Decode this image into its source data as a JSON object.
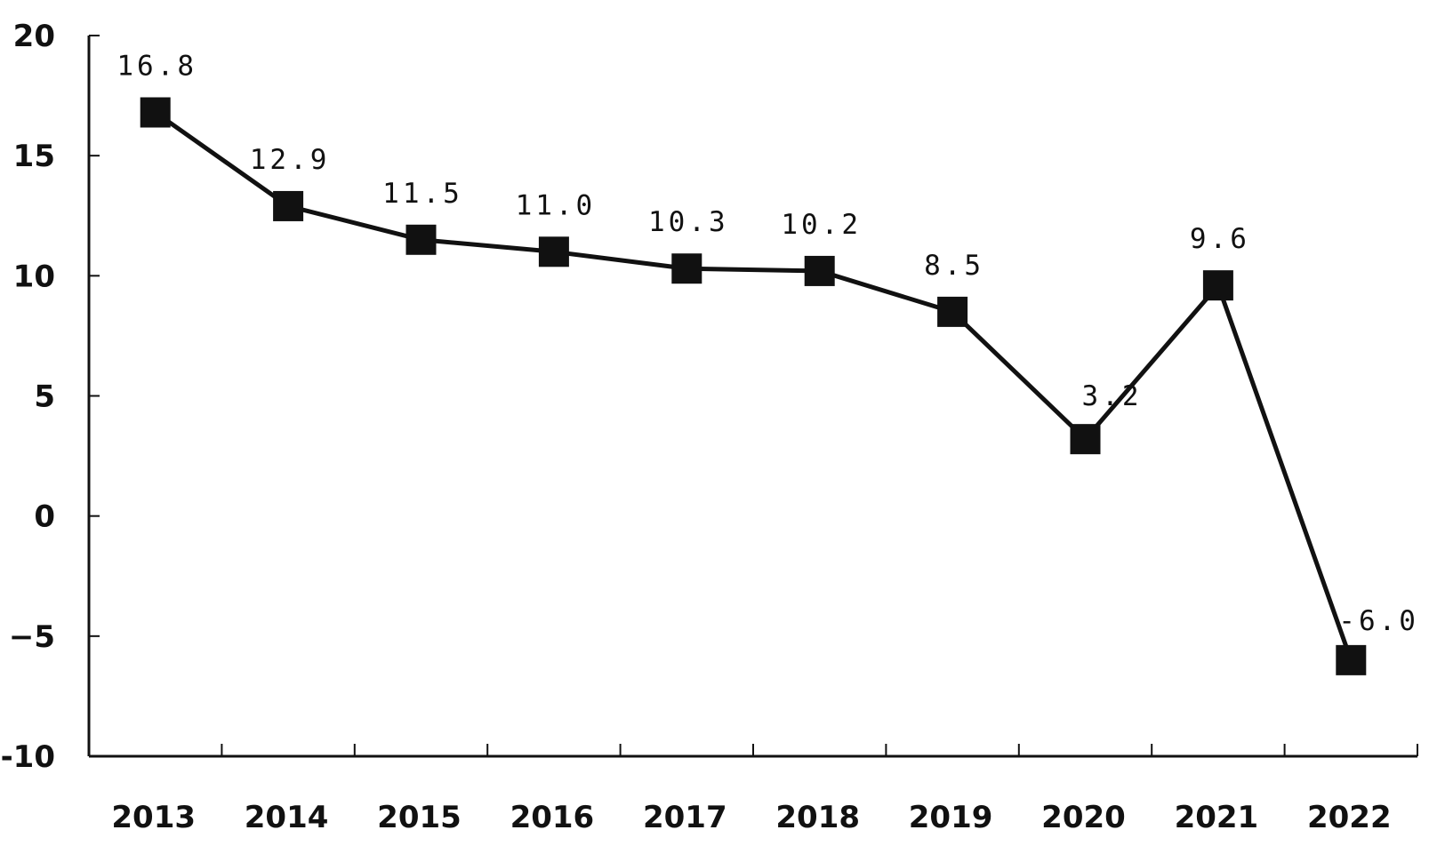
{
  "chart_data": {
    "type": "line",
    "title": "",
    "xlabel": "",
    "ylabel": "",
    "categories": [
      "2013",
      "2014",
      "2015",
      "2016",
      "2017",
      "2018",
      "2019",
      "2020",
      "2021",
      "2022"
    ],
    "series": [
      {
        "values": [
          16.8,
          12.9,
          11.5,
          11.0,
          10.3,
          10.2,
          8.5,
          3.2,
          9.6,
          -6.0
        ],
        "data_labels": [
          "16.8",
          "12.9",
          "11.5",
          "11.0",
          "10.3",
          "10.2",
          "8.5",
          "3.2",
          "9.6",
          "-6.0"
        ]
      }
    ],
    "ylim": [
      -10,
      20
    ],
    "y_ticks": [
      20,
      15,
      10,
      5,
      0,
      -5,
      -10
    ],
    "y_tick_labels": [
      "20",
      "15",
      "10",
      "5",
      "0",
      "−5",
      "-10"
    ],
    "grid": false,
    "legend": "none",
    "line_color": "#111111",
    "marker": "square"
  }
}
